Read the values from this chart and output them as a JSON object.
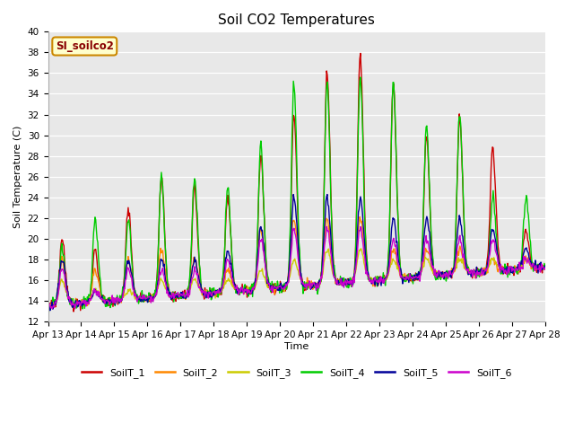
{
  "title": "Soil CO2 Temperatures",
  "ylabel": "Soil Temperature (C)",
  "xlabel": "Time",
  "ylim": [
    12,
    40
  ],
  "yticks": [
    12,
    14,
    16,
    18,
    20,
    22,
    24,
    26,
    28,
    30,
    32,
    34,
    36,
    38,
    40
  ],
  "series_labels": [
    "SoilT_1",
    "SoilT_2",
    "SoilT_3",
    "SoilT_4",
    "SoilT_5",
    "SoilT_6"
  ],
  "series_colors": [
    "#cc0000",
    "#ff8800",
    "#cccc00",
    "#00cc00",
    "#000099",
    "#cc00cc"
  ],
  "line_width": 1.0,
  "bg_color": "#e8e8e8",
  "annotation_text": "SI_soilco2",
  "annotation_bg": "#ffffcc",
  "annotation_border": "#cc8800",
  "annotation_text_color": "#880000",
  "x_day_labels": [
    "Apr 13",
    "Apr 14",
    "Apr 15",
    "Apr 16",
    "Apr 17",
    "Apr 18",
    "Apr 19",
    "Apr 20",
    "Apr 21",
    "Apr 22",
    "Apr 23",
    "Apr 24",
    "Apr 25",
    "Apr 26",
    "Apr 27",
    "Apr 28"
  ],
  "num_days": 15,
  "points_per_day": 48,
  "title_fontsize": 11,
  "label_fontsize": 8,
  "tick_fontsize": 7.5,
  "legend_fontsize": 8
}
